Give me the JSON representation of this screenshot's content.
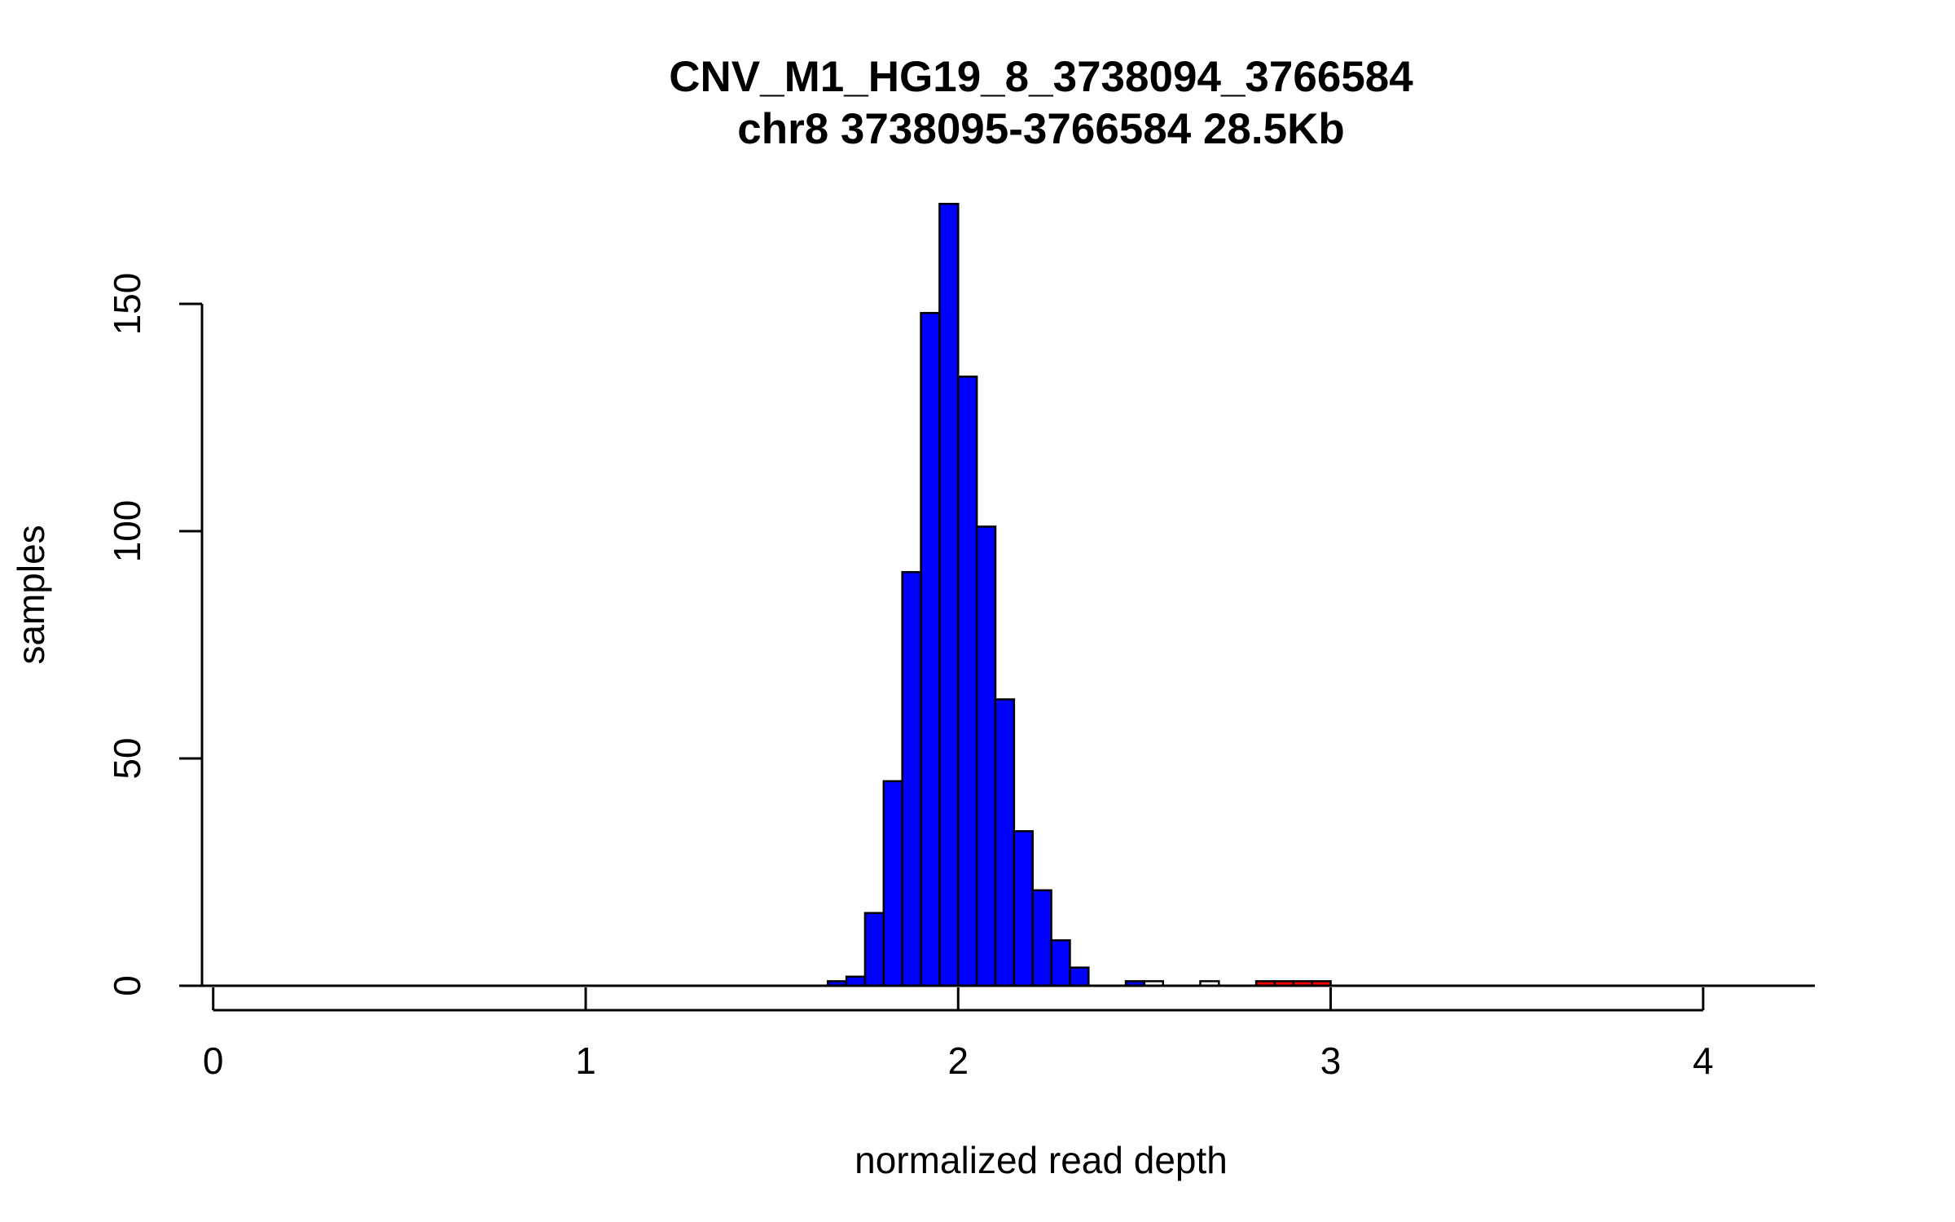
{
  "chart_data": {
    "type": "bar",
    "title": "CNV_M1_HG19_8_3738094_3766584",
    "subtitle": "chr8 3738095-3766584 28.5Kb",
    "xlabel": "normalized read depth",
    "ylabel": "samples",
    "xlim": [
      -0.03,
      4.3
    ],
    "ylim": [
      0,
      175
    ],
    "x_ticks": [
      0,
      1,
      2,
      3,
      4
    ],
    "y_ticks": [
      0,
      50,
      100,
      150
    ],
    "bin_width": 0.05,
    "grid": false,
    "legend": "none",
    "colors": {
      "blue": "#0000ff",
      "white": "#ffffff",
      "red": "#ff0000",
      "outline": "#000000"
    },
    "bins": [
      {
        "x0": 1.65,
        "x1": 1.7,
        "count": 1,
        "color": "blue"
      },
      {
        "x0": 1.7,
        "x1": 1.75,
        "count": 2,
        "color": "blue"
      },
      {
        "x0": 1.75,
        "x1": 1.8,
        "count": 16,
        "color": "blue"
      },
      {
        "x0": 1.8,
        "x1": 1.85,
        "count": 45,
        "color": "blue"
      },
      {
        "x0": 1.85,
        "x1": 1.9,
        "count": 91,
        "color": "blue"
      },
      {
        "x0": 1.9,
        "x1": 1.95,
        "count": 148,
        "color": "blue"
      },
      {
        "x0": 1.95,
        "x1": 2.0,
        "count": 172,
        "color": "blue"
      },
      {
        "x0": 2.0,
        "x1": 2.05,
        "count": 134,
        "color": "blue"
      },
      {
        "x0": 2.05,
        "x1": 2.1,
        "count": 101,
        "color": "blue"
      },
      {
        "x0": 2.1,
        "x1": 2.15,
        "count": 63,
        "color": "blue"
      },
      {
        "x0": 2.15,
        "x1": 2.2,
        "count": 34,
        "color": "blue"
      },
      {
        "x0": 2.2,
        "x1": 2.25,
        "count": 21,
        "color": "blue"
      },
      {
        "x0": 2.25,
        "x1": 2.3,
        "count": 10,
        "color": "blue"
      },
      {
        "x0": 2.3,
        "x1": 2.35,
        "count": 4,
        "color": "blue"
      },
      {
        "x0": 2.45,
        "x1": 2.5,
        "count": 1,
        "color": "blue"
      },
      {
        "x0": 2.5,
        "x1": 2.55,
        "count": 1,
        "color": "white"
      },
      {
        "x0": 2.65,
        "x1": 2.7,
        "count": 1,
        "color": "white"
      },
      {
        "x0": 2.8,
        "x1": 2.85,
        "count": 1,
        "color": "red"
      },
      {
        "x0": 2.85,
        "x1": 2.9,
        "count": 1,
        "color": "red"
      },
      {
        "x0": 2.9,
        "x1": 2.95,
        "count": 1,
        "color": "red"
      },
      {
        "x0": 2.95,
        "x1": 3.0,
        "count": 1,
        "color": "red"
      }
    ]
  }
}
